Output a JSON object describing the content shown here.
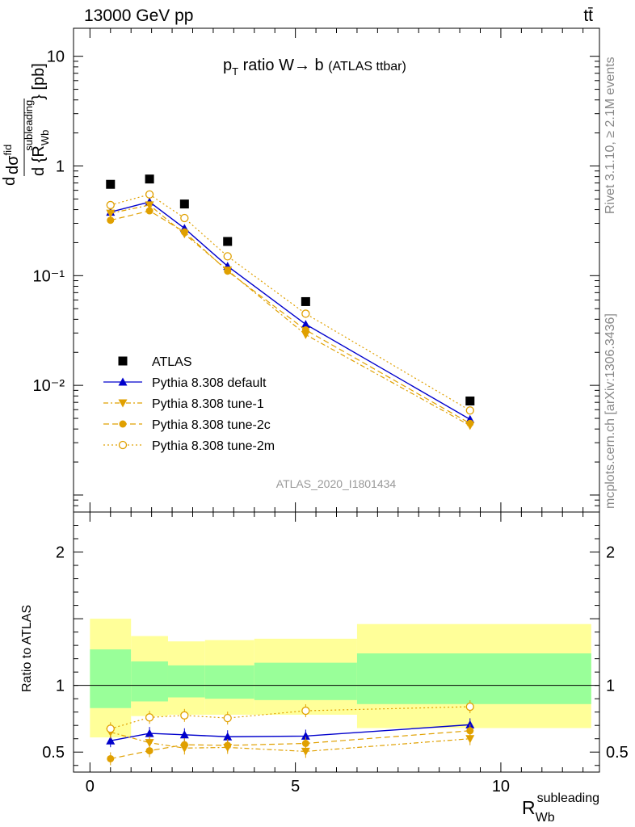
{
  "header": {
    "left": "13000 GeV pp",
    "right": "tt̄"
  },
  "side_labels": {
    "rivet": "Rivet 3.1.10, ≥ 2.1M events",
    "mcplots": "mcplots.cern.ch [arXiv:1306.3436]"
  },
  "watermark": "ATLAS_2020_I1801434",
  "chart_data": [
    {
      "type": "scatter",
      "title": "p_T ratio W → b (ATLAS ttbar)",
      "title_parts": {
        "p": "p",
        "sub": "T",
        "main": " ratio W→ b ",
        "small": "(ATLAS ttbar)"
      },
      "ylabel": "dσ/d{R_Wb^subleading} [pb]",
      "ylabel_parts": {
        "d": "d",
        "num": "dσ",
        "num_sup": "fid",
        "den": "d {R",
        "den_sub": "Wb",
        "den_sup": "subleading",
        "unit": "} [pb]"
      },
      "yscale": "log",
      "ylim": [
        0.0007,
        18
      ],
      "xlim": [
        -0.4,
        12.4
      ],
      "y_tick_labels": [
        "10⁻²",
        "10⁻¹",
        "1",
        "10"
      ],
      "legend_position": "bottom-left",
      "x": [
        0.5,
        1.45,
        2.3,
        3.35,
        5.25,
        9.25
      ],
      "series": [
        {
          "name": "ATLAS",
          "color": "#000000",
          "marker": "square",
          "line": "none",
          "values": [
            0.68,
            0.76,
            0.45,
            0.205,
            0.058,
            0.0072
          ]
        },
        {
          "name": "Pythia 8.308 default",
          "color": "#0000cc",
          "marker": "triangle-up",
          "line": "solid",
          "values": [
            0.38,
            0.47,
            0.27,
            0.122,
            0.036,
            0.0049
          ]
        },
        {
          "name": "Pythia 8.308 tune-1",
          "color": "#e0a000",
          "marker": "triangle-down",
          "line": "dashdot",
          "values": [
            0.37,
            0.44,
            0.24,
            0.112,
            0.029,
            0.0043
          ]
        },
        {
          "name": "Pythia 8.308 tune-2c",
          "color": "#e0a000",
          "marker": "circle",
          "line": "dashed",
          "values": [
            0.32,
            0.39,
            0.25,
            0.11,
            0.032,
            0.0045
          ]
        },
        {
          "name": "Pythia 8.308 tune-2m",
          "color": "#e0a000",
          "marker": "open-circle",
          "line": "dotted",
          "values": [
            0.44,
            0.55,
            0.335,
            0.15,
            0.045,
            0.0059
          ]
        }
      ]
    },
    {
      "type": "scatter",
      "xlabel": "R_Wb^subleading",
      "xlabel_parts": {
        "main": "R",
        "sub": "Wb",
        "sup": "subleading"
      },
      "ylabel": "Ratio to ATLAS",
      "ylim": [
        0.35,
        2.3
      ],
      "xlim": [
        -0.4,
        12.4
      ],
      "x_tick_labels": [
        "0",
        "5",
        "10"
      ],
      "y_tick_labels": [
        "0.5",
        "1",
        "2"
      ],
      "bands": {
        "edges": [
          0,
          1,
          1.9,
          2.8,
          4,
          6.5,
          12.2
        ],
        "yellow_low": [
          0.61,
          0.77,
          0.78,
          0.78,
          0.78,
          0.68
        ],
        "yellow_high": [
          1.5,
          1.37,
          1.33,
          1.34,
          1.35,
          1.46
        ],
        "green_low": [
          0.83,
          0.88,
          0.91,
          0.9,
          0.89,
          0.86
        ],
        "green_high": [
          1.27,
          1.18,
          1.15,
          1.15,
          1.17,
          1.24
        ]
      },
      "x": [
        0.5,
        1.45,
        2.3,
        3.35,
        5.25,
        9.25
      ],
      "series": [
        {
          "name": "Pythia 8.308 default",
          "values": [
            0.585,
            0.64,
            0.63,
            0.615,
            0.62,
            0.705
          ]
        },
        {
          "name": "Pythia 8.308 tune-1",
          "values": [
            0.65,
            0.57,
            0.53,
            0.535,
            0.505,
            0.6
          ]
        },
        {
          "name": "Pythia 8.308 tune-2c",
          "values": [
            0.45,
            0.51,
            0.555,
            0.55,
            0.565,
            0.66
          ]
        },
        {
          "name": "Pythia 8.308 tune-2m",
          "values": [
            0.675,
            0.76,
            0.775,
            0.755,
            0.81,
            0.84
          ]
        }
      ]
    }
  ]
}
